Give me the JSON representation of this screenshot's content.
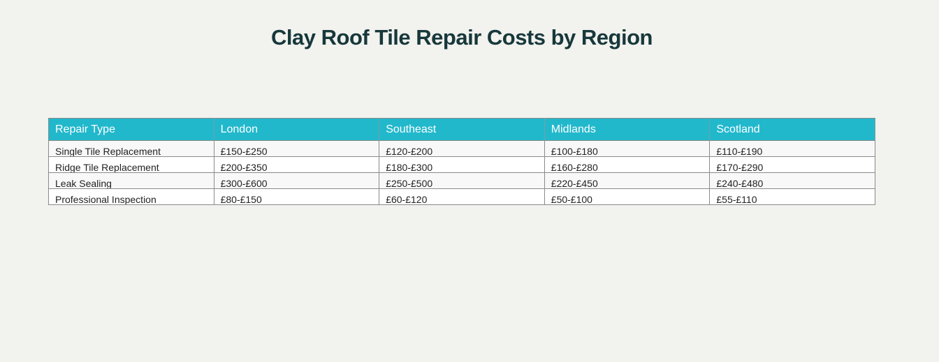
{
  "title": "Clay Roof Tile Repair Costs by Region",
  "table": {
    "headers": [
      "Repair Type",
      "London",
      "Southeast",
      "Midlands",
      "Scotland"
    ],
    "rows": [
      [
        "Single Tile Replacement",
        "£150-£250",
        "£120-£200",
        "£100-£180",
        "£110-£190"
      ],
      [
        "Ridge Tile Replacement",
        "£200-£350",
        "£180-£300",
        "£160-£280",
        "£170-£290"
      ],
      [
        "Leak Sealing",
        "£300-£600",
        "£250-£500",
        "£220-£450",
        "£240-£480"
      ],
      [
        "Professional Inspection",
        "£80-£150",
        "£60-£120",
        "£50-£100",
        "£55-£110"
      ]
    ]
  },
  "colors": {
    "header_bg": "#22b8cc",
    "title": "#17383b"
  }
}
